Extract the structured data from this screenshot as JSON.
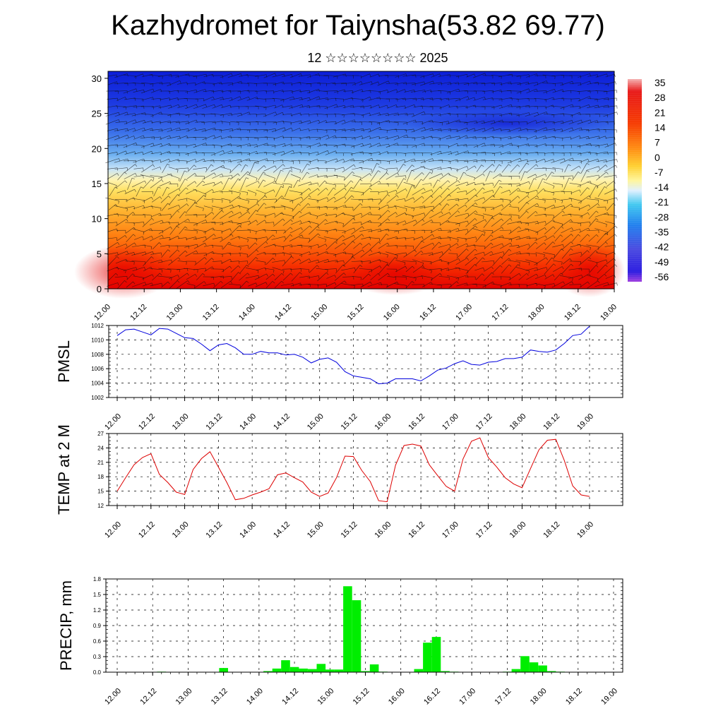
{
  "title": "Kazhydromet for Taiynsha(53.82 69.77)",
  "subtitle": "12 ☆☆☆☆☆☆☆☆ 2025",
  "time_ticks": [
    "12.00",
    "12.12",
    "13.00",
    "13.12",
    "14.00",
    "14.12",
    "15.00",
    "15.12",
    "16.00",
    "16.12",
    "17.00",
    "17.12",
    "18.00",
    "18.12",
    "19.00"
  ],
  "colors": {
    "pmsl_line": "#0000dd",
    "temp_line": "#dd0000",
    "precip_bar": "#00ee00"
  },
  "chart_data": [
    {
      "type": "heatmap",
      "name": "temperature-wind-cross-section",
      "y_ticks": [
        "0",
        "5",
        "10",
        "15",
        "20",
        "25",
        "30"
      ],
      "ylim": [
        0,
        31
      ],
      "colorbar_labels": [
        "35",
        "28",
        "21",
        "14",
        "7",
        "0",
        "-7",
        "-14",
        "-21",
        "-28",
        "-35",
        "-42",
        "-49",
        "-56"
      ]
    },
    {
      "type": "line",
      "name": "pmsl",
      "ylabel": "PMSL",
      "ylim": [
        1002,
        1012
      ],
      "y_ticks": [
        "1012",
        "1010",
        "1008",
        "1006",
        "1004",
        "1002"
      ],
      "x_hours": [
        0,
        3,
        6,
        9,
        12,
        15,
        18,
        21,
        24,
        27,
        30,
        33,
        36,
        39,
        42,
        45,
        48,
        51,
        54,
        57,
        60,
        63,
        66,
        69,
        72,
        75,
        78,
        81,
        84,
        87,
        90,
        93,
        96,
        99,
        102,
        105,
        108,
        111,
        114,
        117,
        120,
        123,
        126,
        129,
        132,
        135,
        138,
        141,
        144,
        147,
        150,
        153,
        156,
        159,
        162,
        165,
        168
      ],
      "values": [
        1010.6,
        1011.4,
        1011.5,
        1011.1,
        1010.7,
        1011.6,
        1011.5,
        1010.9,
        1010.3,
        1010.2,
        1009.4,
        1008.5,
        1009.3,
        1009.5,
        1008.9,
        1008.0,
        1008.0,
        1008.4,
        1008.2,
        1008.2,
        1007.9,
        1008.0,
        1007.6,
        1006.8,
        1007.3,
        1007.5,
        1006.9,
        1005.6,
        1005.0,
        1004.8,
        1004.6,
        1003.9,
        1004.0,
        1004.6,
        1004.6,
        1004.6,
        1004.3,
        1005.0,
        1005.8,
        1006.1,
        1006.7,
        1007.1,
        1006.6,
        1006.5,
        1006.9,
        1007.0,
        1007.4,
        1007.4,
        1007.6,
        1008.6,
        1008.4,
        1008.3,
        1008.6,
        1009.5,
        1010.6,
        1010.8,
        1011.9
      ]
    },
    {
      "type": "line",
      "name": "temp-2m",
      "ylabel": "TEMP at 2 M",
      "ylim": [
        12,
        27
      ],
      "y_ticks": [
        "27",
        "24",
        "21",
        "18",
        "15",
        "12"
      ],
      "x_hours": [
        0,
        3,
        6,
        9,
        12,
        15,
        18,
        21,
        24,
        27,
        30,
        33,
        36,
        39,
        42,
        45,
        48,
        51,
        54,
        57,
        60,
        63,
        66,
        69,
        72,
        75,
        78,
        81,
        84,
        87,
        90,
        93,
        96,
        99,
        102,
        105,
        108,
        111,
        114,
        117,
        120,
        123,
        126,
        129,
        132,
        135,
        138,
        141,
        144,
        147,
        150,
        153,
        156,
        159,
        162,
        165,
        168
      ],
      "values": [
        15.0,
        17.8,
        20.5,
        22.0,
        22.8,
        18.5,
        16.8,
        14.8,
        14.3,
        19.5,
        21.8,
        23.2,
        20.0,
        16.8,
        13.2,
        13.5,
        14.2,
        14.8,
        15.5,
        18.4,
        18.8,
        17.8,
        16.9,
        14.8,
        13.9,
        14.6,
        17.8,
        22.3,
        22.2,
        19.3,
        17.0,
        13.0,
        12.8,
        20.4,
        24.5,
        24.8,
        24.4,
        20.5,
        18.2,
        16.0,
        15.0,
        21.7,
        25.4,
        26.1,
        22.0,
        20.0,
        17.8,
        16.5,
        15.7,
        19.7,
        23.6,
        25.6,
        25.8,
        21.4,
        16.1,
        14.2,
        13.9
      ]
    },
    {
      "type": "bar",
      "name": "precip",
      "ylabel": "PRECIP, mm",
      "ylim": [
        0,
        1.8
      ],
      "y_ticks": [
        "1.8",
        "1.5",
        "1.2",
        "0.9",
        "0.6",
        "0.3",
        "0.0"
      ],
      "x_hours": [
        15,
        36,
        51,
        54,
        57,
        60,
        63,
        66,
        69,
        72,
        75,
        78,
        81,
        84,
        87,
        90,
        102,
        105,
        108,
        111,
        114,
        132,
        135,
        138,
        141,
        144,
        147,
        150
      ],
      "values": [
        0.01,
        0.08,
        0.02,
        0.07,
        0.23,
        0.1,
        0.07,
        0.06,
        0.16,
        0.05,
        0.05,
        1.66,
        1.39,
        0.02,
        0.15,
        0.01,
        0.06,
        0.57,
        0.68,
        0.02,
        0.01,
        0.01,
        0.06,
        0.31,
        0.19,
        0.13,
        0.02,
        0.01
      ]
    }
  ]
}
